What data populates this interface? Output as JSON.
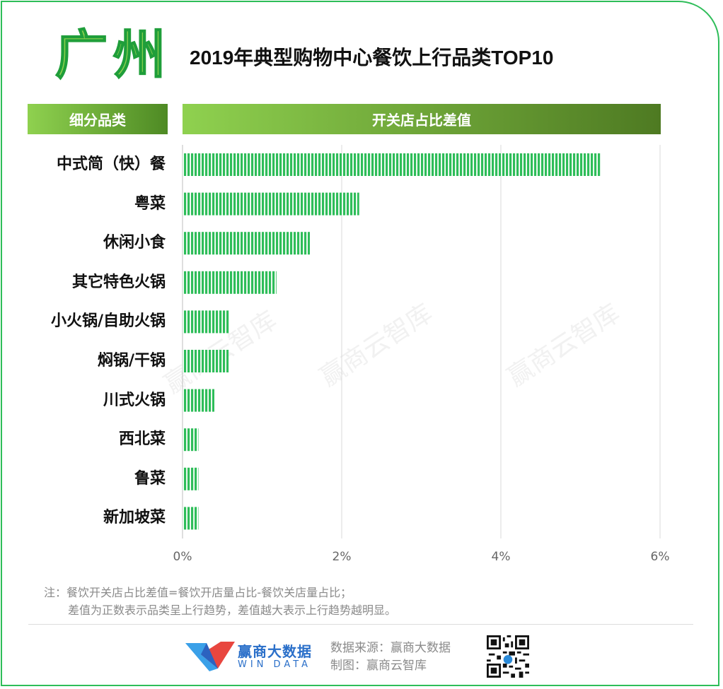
{
  "header": {
    "city": "广州",
    "title": "2019年典型购物中心餐饮上行品类TOP10",
    "col_left": "细分品类",
    "col_right": "开关店占比差值"
  },
  "chart_data": {
    "type": "bar",
    "orientation": "horizontal",
    "categories": [
      "中式简（快）餐",
      "粤菜",
      "休闲小食",
      "其它特色火锅",
      "小火锅/自助火锅",
      "焖锅/干锅",
      "川式火锅",
      "西北菜",
      "鲁菜",
      "新加坡菜"
    ],
    "values": [
      5.25,
      2.22,
      1.6,
      1.18,
      0.59,
      0.58,
      0.4,
      0.2,
      0.2,
      0.2
    ],
    "xlim": [
      0,
      6
    ],
    "xticks": [
      "0%",
      "2%",
      "4%",
      "6%"
    ],
    "grid": true,
    "bar_color": "#2ebd59"
  },
  "notes": {
    "line1": "注：餐饮开关店占比差值=餐饮开店量占比-餐饮关店量占比；",
    "line2": "差值为正数表示品类呈上行趋势，差值越大表示上行趋势越明显。"
  },
  "footer": {
    "brand_cn": "赢商大数据",
    "brand_en": "WIN DATA",
    "source": "数据来源：赢商大数据",
    "made_by": "制图：赢商云智库"
  },
  "watermark": "赢商云智库"
}
